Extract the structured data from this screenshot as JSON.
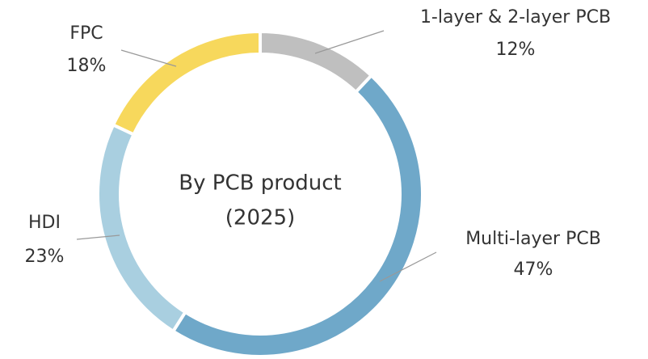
{
  "chart_data": {
    "type": "donut",
    "title": "By PCB product",
    "subtitle": "(2025)",
    "categories": [
      "1-layer & 2-layer PCB",
      "Multi-layer PCB",
      "HDI",
      "FPC"
    ],
    "values": [
      12,
      47,
      23,
      18
    ],
    "value_labels": [
      "12%",
      "47%",
      "23%",
      "18%"
    ],
    "colors": [
      "#bfbfbf",
      "#6fa8c9",
      "#a9cfe0",
      "#f7d85c"
    ]
  }
}
